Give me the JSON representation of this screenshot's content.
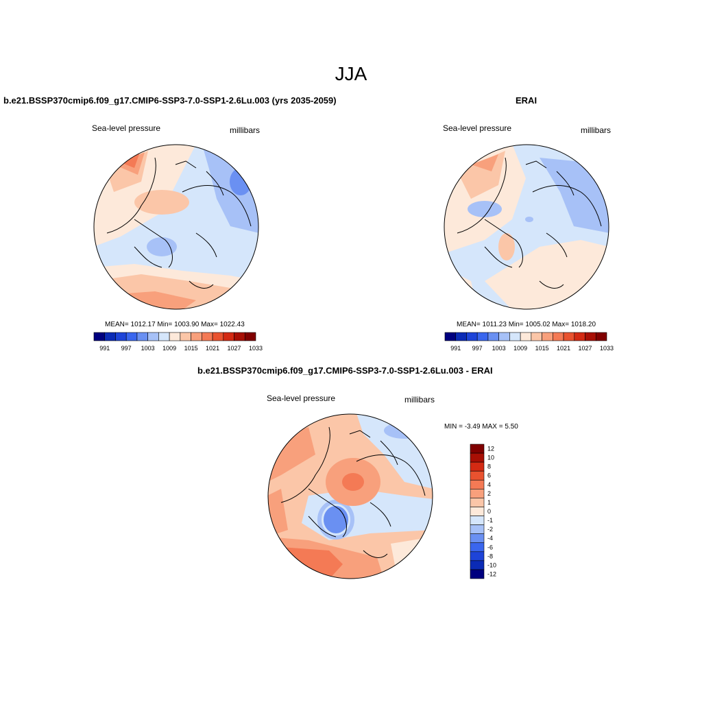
{
  "figure": {
    "title": "JJA"
  },
  "panels": [
    {
      "title": "b.e21.BSSP370cmip6.f09_g17.CMIP6-SSP3-7.0-SSP1-2.6Lu.003 (yrs 2035-2059)",
      "left_label": "Sea-level pressure",
      "right_label": "millibars",
      "stats": "MEAN= 1012.17  Min= 1003.90  Max= 1022.43",
      "colorbar": {
        "ticks": [
          "991",
          "997",
          "1003",
          "1009",
          "1015",
          "1021",
          "1027",
          "1033"
        ],
        "colors": [
          "#00007f",
          "#0b2bb6",
          "#1e44d8",
          "#3a66ee",
          "#6a90f2",
          "#a7c1f7",
          "#d5e6fb",
          "#fde9da",
          "#fbc6a8",
          "#f8a07c",
          "#f47a55",
          "#e9522f",
          "#d32a13",
          "#a80f05",
          "#800000"
        ]
      }
    },
    {
      "title": "ERAI",
      "left_label": "Sea-level pressure",
      "right_label": "millibars",
      "stats": "MEAN= 1011.23  Min= 1005.02  Max= 1018.20",
      "colorbar": {
        "ticks": [
          "991",
          "997",
          "1003",
          "1009",
          "1015",
          "1021",
          "1027",
          "1033"
        ],
        "colors": [
          "#00007f",
          "#0b2bb6",
          "#1e44d8",
          "#3a66ee",
          "#6a90f2",
          "#a7c1f7",
          "#d5e6fb",
          "#fde9da",
          "#fbc6a8",
          "#f8a07c",
          "#f47a55",
          "#e9522f",
          "#d32a13",
          "#a80f05",
          "#800000"
        ]
      }
    },
    {
      "title": "b.e21.BSSP370cmip6.f09_g17.CMIP6-SSP3-7.0-SSP1-2.6Lu.003 - ERAI",
      "left_label": "Sea-level pressure",
      "right_label": "millibars",
      "stats": "MIN =  -3.49 MAX =   5.50",
      "colorbar": {
        "ticks": [
          "12",
          "10",
          "8",
          "6",
          "4",
          "2",
          "1",
          "0",
          "-1",
          "-2",
          "-4",
          "-6",
          "-8",
          "-10",
          "-12"
        ],
        "colors": [
          "#800000",
          "#a80f05",
          "#d32a13",
          "#e9522f",
          "#f47a55",
          "#f8a07c",
          "#fbc6a8",
          "#fde9da",
          "#d5e6fb",
          "#a7c1f7",
          "#6a90f2",
          "#3a66ee",
          "#1e44d8",
          "#0b2bb6",
          "#00007f"
        ]
      }
    }
  ]
}
